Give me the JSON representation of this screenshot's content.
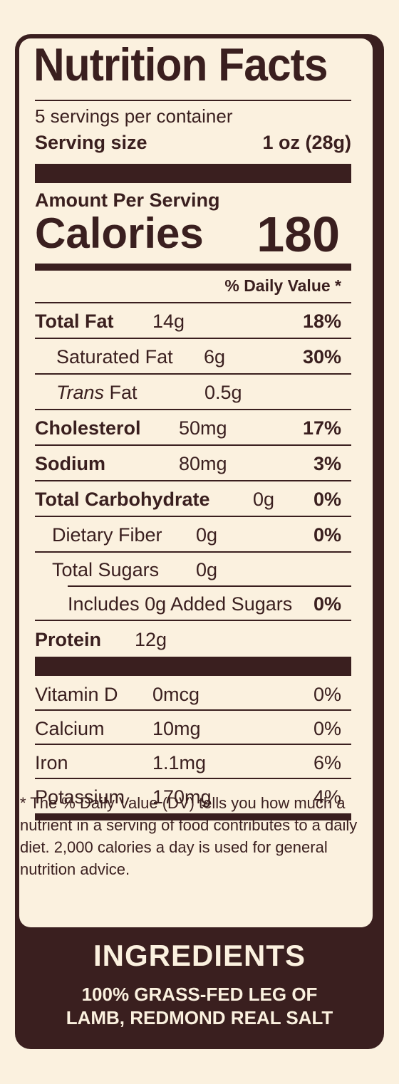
{
  "title": "Nutrition Facts",
  "servings_per_container": "5 servings per container",
  "serving_size_label": "Serving size",
  "serving_size_value": "1 oz (28g)",
  "amount_per_serving": "Amount Per Serving",
  "calories_label": "Calories",
  "calories_value": "180",
  "daily_value_header": "% Daily Value *",
  "nutrients": [
    {
      "label": "Total Fat",
      "amount": "14g",
      "dv": "18%"
    },
    {
      "label": "Saturated Fat",
      "amount": "6g",
      "dv": "30%"
    },
    {
      "label_italic": "Trans",
      "label_rest": " Fat",
      "amount": "0.5g"
    },
    {
      "label": "Cholesterol",
      "amount": "50mg",
      "dv": "17%"
    },
    {
      "label": "Sodium",
      "amount": "80mg",
      "dv": "3%"
    },
    {
      "label": "Total Carbohydrate",
      "amount": "0g",
      "dv": "0%"
    },
    {
      "label": "Dietary Fiber",
      "amount": "0g",
      "dv": "0%"
    },
    {
      "label": "Total Sugars",
      "amount": "0g"
    },
    {
      "label": "Includes 0g Added Sugars",
      "dv": "0%"
    },
    {
      "label": "Protein",
      "amount": "12g"
    }
  ],
  "vitamins": [
    {
      "label": "Vitamin D",
      "amount": "0mcg",
      "dv": "0%"
    },
    {
      "label": "Calcium",
      "amount": "10mg",
      "dv": "0%"
    },
    {
      "label": "Iron",
      "amount": "1.1mg",
      "dv": "6%"
    },
    {
      "label": "Potassium",
      "amount": "170mg",
      "dv": "4%"
    }
  ],
  "footnote": "* The % Daily Value (DV) tells you how much a nutrient in a serving of food contributes to a daily diet. 2,000 calories a day is used for general nutrition advice.",
  "ingredients_title": "INGREDIENTS",
  "ingredients_line1": "100% GRASS-FED LEG OF",
  "ingredients_line2": "LAMB, REDMOND REAL SALT"
}
